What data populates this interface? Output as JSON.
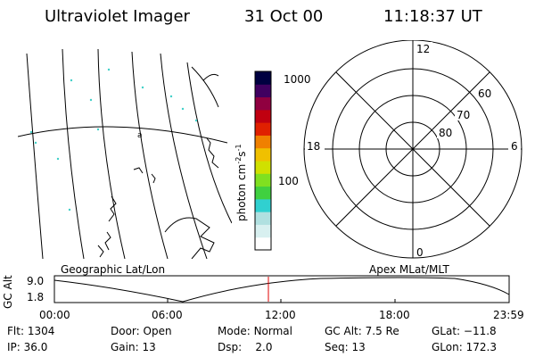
{
  "header": {
    "instrument": "Ultraviolet Imager",
    "date": "31 Oct 00",
    "time": "11:18:37 UT"
  },
  "left_panel": {
    "label": "Geographic Lat/Lon"
  },
  "right_panel": {
    "label": "Apex MLat/MLT",
    "mlt_labels": {
      "top": "12",
      "bottom": "0",
      "left": "18",
      "right": "6"
    },
    "mlat_labels": [
      "60",
      "70",
      "80"
    ]
  },
  "colorbar": {
    "unit_label": "photon cm",
    "unit_sup1": "-2",
    "unit_s": "s",
    "unit_sup2": "-1",
    "ticks": [
      "1000",
      "100"
    ],
    "scale": "log",
    "range": [
      10,
      1200
    ],
    "colors": [
      "#ffffff",
      "#d8f0f0",
      "#b0e0e0",
      "#30d0d0",
      "#40d040",
      "#80e020",
      "#d0e000",
      "#f0c000",
      "#f08000",
      "#e02000",
      "#c00010",
      "#900040",
      "#400060",
      "#000040"
    ]
  },
  "orbit_plot": {
    "ylabel": "GC Alt",
    "yticks": [
      "9.0",
      "1.8"
    ],
    "xticks": [
      "00:00",
      "06:00",
      "12:00",
      "18:00",
      "23:59"
    ],
    "current_time_marker": "11:18",
    "marker_color": "#e00000"
  },
  "info": {
    "flt_label": "Flt:",
    "flt": "1304",
    "ip_label": "IP:",
    "ip": "36.0",
    "door_label": "Door:",
    "door": "Open",
    "gain_label": "Gain:",
    "gain": "13",
    "mode_label": "Mode:",
    "mode": "Normal",
    "dsp_label": "Dsp:",
    "dsp": "2.0",
    "gcalt_label": "GC Alt:",
    "gcalt": "7.5 Re",
    "seq_label": "Seq:",
    "seq": "13",
    "glat_label": "GLat:",
    "glat": "−11.8",
    "glon_label": "GLon:",
    "glon": "172.3"
  }
}
